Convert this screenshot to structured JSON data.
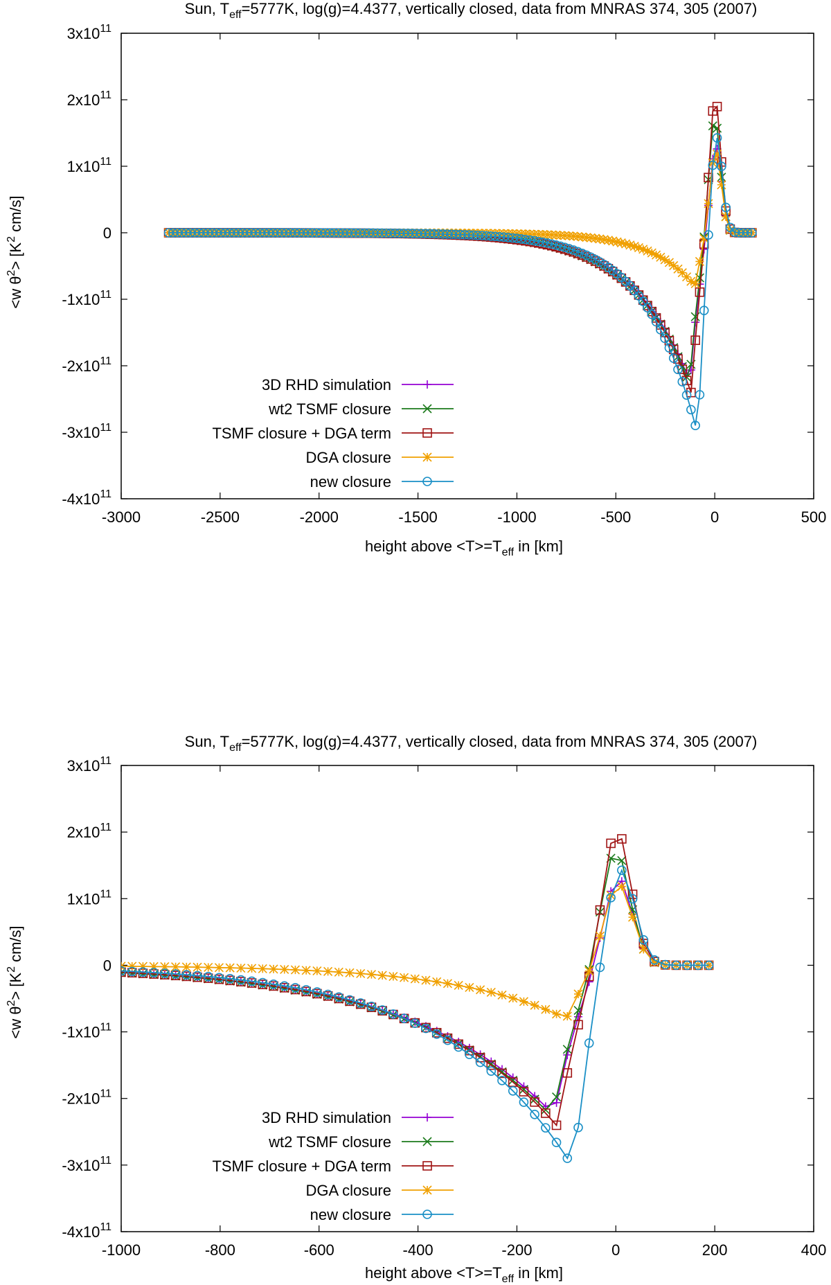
{
  "series_styles": [
    {
      "name": "3D RHD simulation",
      "color": "#9400d3",
      "marker": "plus"
    },
    {
      "name": "wt2 TSMF closure",
      "color": "#1b7a1b",
      "marker": "cross"
    },
    {
      "name": "TSMF closure + DGA term",
      "color": "#a01414",
      "marker": "square"
    },
    {
      "name": "DGA closure",
      "color": "#f0a000",
      "marker": "star"
    },
    {
      "name": "new closure",
      "color": "#1a8fc6",
      "marker": "circle"
    }
  ],
  "chart_data": [
    {
      "type": "line",
      "title": {
        "pre": "Sun, T",
        "sub": "eff",
        "post": "=5777K, log(g)=4.4377, vertically closed, data from MNRAS 374, 305 (2007)"
      },
      "xlabel": {
        "pre": "height above <T>=T",
        "sub": "eff",
        "post": " in [km]"
      },
      "ylabel": {
        "pre": "<w θ",
        "sup": "2",
        "mid": "> [K",
        "sup2": "2",
        "post": " cm/s]"
      },
      "xlim": [
        -3000,
        500
      ],
      "ylim": [
        -400000000000,
        300000000000
      ],
      "xticks": [
        "-3000",
        "-2500",
        "-2000",
        "-1500",
        "-1000",
        "-500",
        "0",
        "500"
      ],
      "yticks": [
        {
          "value": 300000000000,
          "base": "3x10",
          "exp": "11"
        },
        {
          "value": 200000000000,
          "base": "2x10",
          "exp": "11"
        },
        {
          "value": 100000000000,
          "base": "1x10",
          "exp": "11"
        },
        {
          "value": 0,
          "base": "0",
          "exp": ""
        },
        {
          "value": -100000000000,
          "base": "-1x10",
          "exp": "11"
        },
        {
          "value": -200000000000,
          "base": "-2x10",
          "exp": "11"
        },
        {
          "value": -300000000000,
          "base": "-3x10",
          "exp": "11"
        },
        {
          "value": -400000000000,
          "base": "-4x10",
          "exp": "11"
        }
      ],
      "legend_position": "bottom-left",
      "x_range": [
        -2760,
        205
      ],
      "sample_step": 22,
      "series": [
        {
          "name": "3D RHD simulation",
          "peak_ymin": -225000000000,
          "peak_xmin": -125,
          "pos_ymax": 130000000000,
          "pos_x": 5,
          "decay": 180
        },
        {
          "name": "wt2 TSMF closure",
          "peak_ymin": -228000000000,
          "peak_xmin": -128,
          "pos_ymax": 172000000000,
          "pos_x": 0,
          "decay": 180
        },
        {
          "name": "TSMF closure + DGA term",
          "peak_ymin": -242000000000,
          "peak_xmin": -118,
          "pos_ymax": 202000000000,
          "pos_x": 2,
          "decay": 175
        },
        {
          "name": "DGA closure",
          "peak_ymin": -80000000000,
          "peak_xmin": -100,
          "pos_ymax": 122000000000,
          "pos_x": 5,
          "decay": 140
        },
        {
          "name": "new closure",
          "peak_ymin": -305000000000,
          "peak_xmin": -85,
          "pos_ymax": 143000000000,
          "pos_x": 10,
          "decay": 160
        }
      ]
    },
    {
      "type": "line",
      "title": {
        "pre": "Sun, T",
        "sub": "eff",
        "post": "=5777K, log(g)=4.4377, vertically closed, data from MNRAS 374, 305 (2007)"
      },
      "xlabel": {
        "pre": "height above <T>=T",
        "sub": "eff",
        "post": " in [km]"
      },
      "ylabel": {
        "pre": "<w θ",
        "sup": "2",
        "mid": "> [K",
        "sup2": "2",
        "post": " cm/s]"
      },
      "xlim": [
        -1000,
        400
      ],
      "ylim": [
        -400000000000,
        300000000000
      ],
      "xticks": [
        "-1000",
        "-800",
        "-600",
        "-400",
        "-200",
        "0",
        "200",
        "400"
      ],
      "yticks": [
        {
          "value": 300000000000,
          "base": "3x10",
          "exp": "11"
        },
        {
          "value": 200000000000,
          "base": "2x10",
          "exp": "11"
        },
        {
          "value": 100000000000,
          "base": "1x10",
          "exp": "11"
        },
        {
          "value": 0,
          "base": "0",
          "exp": ""
        },
        {
          "value": -100000000000,
          "base": "-1x10",
          "exp": "11"
        },
        {
          "value": -200000000000,
          "base": "-2x10",
          "exp": "11"
        },
        {
          "value": -300000000000,
          "base": "-3x10",
          "exp": "11"
        },
        {
          "value": -400000000000,
          "base": "-4x10",
          "exp": "11"
        }
      ],
      "legend_position": "bottom-left",
      "x_range": [
        -1000,
        205
      ],
      "sample_step": 22,
      "series": [
        {
          "name": "3D RHD simulation",
          "peak_ymin": -225000000000,
          "peak_xmin": -125,
          "pos_ymax": 130000000000,
          "pos_x": 5,
          "decay": 180
        },
        {
          "name": "wt2 TSMF closure",
          "peak_ymin": -228000000000,
          "peak_xmin": -128,
          "pos_ymax": 172000000000,
          "pos_x": 0,
          "decay": 180
        },
        {
          "name": "TSMF closure + DGA term",
          "peak_ymin": -242000000000,
          "peak_xmin": -118,
          "pos_ymax": 202000000000,
          "pos_x": 2,
          "decay": 175
        },
        {
          "name": "DGA closure",
          "peak_ymin": -80000000000,
          "peak_xmin": -100,
          "pos_ymax": 122000000000,
          "pos_x": 5,
          "decay": 140
        },
        {
          "name": "new closure",
          "peak_ymin": -305000000000,
          "peak_xmin": -85,
          "pos_ymax": 143000000000,
          "pos_x": 10,
          "decay": 160
        }
      ]
    }
  ]
}
